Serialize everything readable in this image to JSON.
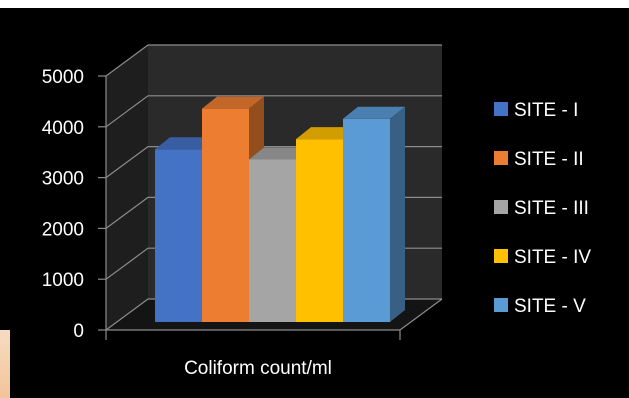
{
  "chart_data": {
    "type": "bar",
    "style": "3d-clustered-column",
    "categories": [
      "Coliform count/ml"
    ],
    "series": [
      {
        "name": "SITE - I",
        "values": [
          3400
        ],
        "color": "#4472c4"
      },
      {
        "name": "SITE - II",
        "values": [
          4200
        ],
        "color": "#ed7d31"
      },
      {
        "name": "SITE - III",
        "values": [
          3200
        ],
        "color": "#a5a5a5"
      },
      {
        "name": "SITE - IV",
        "values": [
          3600
        ],
        "color": "#ffc000"
      },
      {
        "name": "SITE - V",
        "values": [
          4000
        ],
        "color": "#5b9bd5"
      }
    ],
    "yticks": [
      "0",
      "1000",
      "2000",
      "3000",
      "4000",
      "5000"
    ],
    "ylim": [
      0,
      5000
    ],
    "grid": true,
    "legend_position": "right",
    "background": "#000000",
    "title": "",
    "xlabel": "",
    "ylabel": ""
  }
}
